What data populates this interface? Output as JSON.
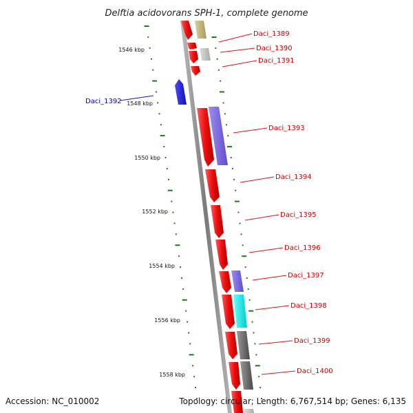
{
  "title": "Delftia acidovorans SPH-1, complete genome",
  "footer": {
    "accession": "Accession: NC_010002",
    "summary": "Topology: circular; Length: 6,767,514 bp; Genes: 6,135"
  },
  "colors": {
    "forward_gene": "#ee1111",
    "reverse_gene": "#2222dd",
    "label_forward": "#cc0000",
    "label_reverse": "#0000cc",
    "tick": "#1a7a1a",
    "backbone": "#8a8a8a"
  },
  "kbp_ticks": [
    {
      "label": "1546 kbp"
    },
    {
      "label": "1548 kbp"
    },
    {
      "label": "1550 kbp"
    },
    {
      "label": "1552 kbp"
    },
    {
      "label": "1554 kbp"
    },
    {
      "label": "1556 kbp"
    },
    {
      "label": "1558 kbp"
    }
  ],
  "gene_labels": [
    {
      "name": "Daci_1389",
      "strand": "forward"
    },
    {
      "name": "Daci_1390",
      "strand": "forward"
    },
    {
      "name": "Daci_1391",
      "strand": "forward"
    },
    {
      "name": "Daci_1392",
      "strand": "reverse"
    },
    {
      "name": "Daci_1393",
      "strand": "forward"
    },
    {
      "name": "Daci_1394",
      "strand": "forward"
    },
    {
      "name": "Daci_1395",
      "strand": "forward"
    },
    {
      "name": "Daci_1396",
      "strand": "forward"
    },
    {
      "name": "Daci_1397",
      "strand": "forward"
    },
    {
      "name": "Daci_1398",
      "strand": "forward"
    },
    {
      "name": "Daci_1399",
      "strand": "forward"
    },
    {
      "name": "Daci_1400",
      "strand": "forward"
    }
  ]
}
